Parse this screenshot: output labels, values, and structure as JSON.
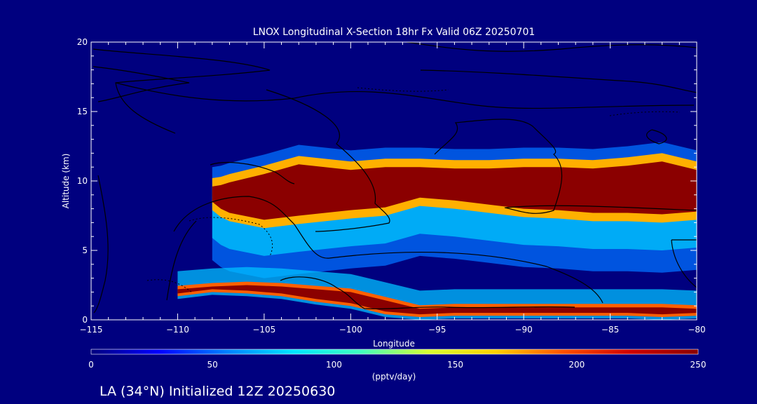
{
  "caption": "LA (34°N) Initialized 12Z 20250630",
  "colors": {
    "background": "#00007f",
    "axis": "#ffffff",
    "contour": "#000000",
    "colorscale": [
      "#00007f",
      "#0000ff",
      "#0080ff",
      "#00e5ff",
      "#40ffbf",
      "#d8ff30",
      "#ffd000",
      "#ff5000",
      "#d00000",
      "#8b0000"
    ]
  },
  "chart_data": {
    "type": "heatmap",
    "title": "LNOX Longitudinal X-Section 18hr  Fx Valid 06Z 20250701",
    "xlabel": "Longitude",
    "ylabel": "Altitude (km)",
    "xlim": [
      -115,
      -80
    ],
    "ylim": [
      0,
      20
    ],
    "x_ticks": [
      -115,
      -110,
      -105,
      -100,
      -95,
      -90,
      -85,
      -80
    ],
    "y_ticks": [
      0,
      5,
      10,
      15,
      20
    ],
    "colorbar": {
      "label": "(pptv/day)",
      "ticks": [
        0,
        50,
        100,
        150,
        200,
        250
      ],
      "range": [
        0,
        250
      ]
    },
    "layers": [
      {
        "x": [
          -108.0,
          -107.5,
          -107.0,
          -105.0,
          -103.0,
          -100.0,
          -98.0,
          -96.0,
          -94.0,
          -92.0,
          -90.0,
          -88.0,
          -86.0,
          -84.0,
          -82.0,
          -80.0
        ],
        "y_bottom": [
          8.5,
          8.0,
          7.7,
          7.2,
          7.5,
          7.9,
          8.1,
          8.8,
          8.6,
          8.3,
          8.0,
          7.9,
          7.7,
          7.7,
          7.6,
          7.8
        ],
        "y_top": [
          9.6,
          9.7,
          9.9,
          10.5,
          11.2,
          10.8,
          11.0,
          11.0,
          10.9,
          10.9,
          11.0,
          11.0,
          10.9,
          11.1,
          11.4,
          10.8
        ],
        "value": 250
      },
      {
        "x": [
          -110.0,
          -108.0,
          -106.0,
          -104.0,
          -102.0,
          -100.0,
          -98.0,
          -96.0,
          -94.0,
          -92.0,
          -90.0,
          -88.0,
          -86.0,
          -84.0,
          -82.0,
          -80.0
        ],
        "y_bottom": [
          1.9,
          2.2,
          2.1,
          1.9,
          1.5,
          1.2,
          0.6,
          0.4,
          0.5,
          0.5,
          0.5,
          0.5,
          0.5,
          0.5,
          0.4,
          0.5
        ],
        "y_top": [
          2.2,
          2.4,
          2.5,
          2.4,
          2.2,
          2.0,
          1.4,
          0.8,
          0.9,
          0.9,
          0.9,
          0.9,
          0.9,
          0.9,
          0.9,
          0.8
        ],
        "value": 250
      }
    ]
  }
}
